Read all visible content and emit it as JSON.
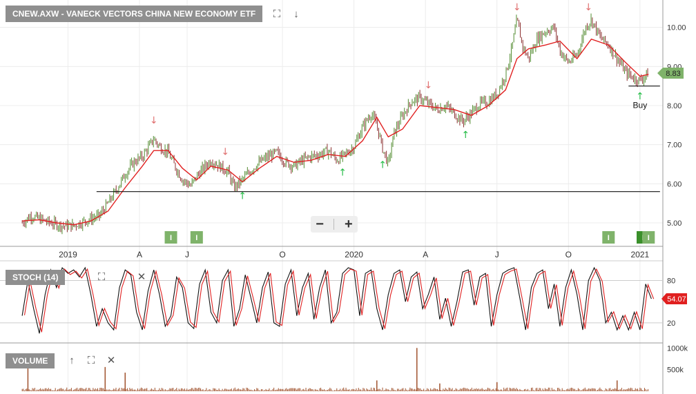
{
  "header": {
    "title": "CNEW.AXW - VANECK VECTORS CHINA NEW ECONOMY ETF"
  },
  "panels": {
    "stoch_label": "STOCH (14)",
    "volume_label": "VOLUME"
  },
  "zoom": {
    "minus": "−",
    "plus": "+"
  },
  "annotation": {
    "buy_label": "Buy"
  },
  "icons": [
    "fullscreen-icon",
    "arrow-down-icon",
    "fullscreen-icon",
    "close-icon",
    "arrow-up-icon",
    "fullscreen-icon",
    "close-icon",
    "minus-icon",
    "plus-icon",
    "dividend-icon"
  ],
  "colors": {
    "candle_up": "#4f8a2d",
    "candle_down": "#8b2f2f",
    "ma": "#e02020",
    "stoch_k": "#111111",
    "stoch_d": "#e02020",
    "volume": "#a0522d",
    "badge": "#7fb36a",
    "badge_dark": "#3a8f2a",
    "down_arrow": "#e07070",
    "up_arrow": "#22bb44"
  },
  "chart_data": {
    "type": "line",
    "price": {
      "y_ticks": [
        "10.00",
        "9.00",
        "8.00",
        "7.00",
        "6.00",
        "5.00"
      ],
      "ylim": [
        4.4,
        10.7
      ],
      "last_price": "8.83",
      "x_ticks": [
        "2019",
        "A",
        "J",
        "O",
        "2020",
        "A",
        "J",
        "O",
        "2021"
      ],
      "x_tick_dates": [
        2019.0,
        2019.25,
        2019.4167,
        2019.75,
        2020.0,
        2020.25,
        2020.5,
        2020.75,
        2021.0
      ],
      "xlim": [
        2018.83,
        2021.08
      ],
      "close": [
        [
          2018.84,
          5.0
        ],
        [
          2018.87,
          5.18
        ],
        [
          2018.9,
          5.1
        ],
        [
          2018.93,
          5.02
        ],
        [
          2018.96,
          4.96
        ],
        [
          2018.99,
          4.92
        ],
        [
          2019.02,
          4.93
        ],
        [
          2019.05,
          5.02
        ],
        [
          2019.08,
          5.1
        ],
        [
          2019.11,
          5.18
        ],
        [
          2019.14,
          5.5
        ],
        [
          2019.17,
          5.85
        ],
        [
          2019.2,
          6.25
        ],
        [
          2019.23,
          6.55
        ],
        [
          2019.26,
          6.7
        ],
        [
          2019.28,
          6.92
        ],
        [
          2019.3,
          7.15
        ],
        [
          2019.32,
          6.95
        ],
        [
          2019.35,
          6.8
        ],
        [
          2019.37,
          6.5
        ],
        [
          2019.4,
          6.1
        ],
        [
          2019.43,
          5.95
        ],
        [
          2019.45,
          6.2
        ],
        [
          2019.48,
          6.45
        ],
        [
          2019.5,
          6.6
        ],
        [
          2019.53,
          6.45
        ],
        [
          2019.56,
          6.3
        ],
        [
          2019.58,
          5.9
        ],
        [
          2019.61,
          6.1
        ],
        [
          2019.64,
          6.35
        ],
        [
          2019.67,
          6.55
        ],
        [
          2019.7,
          6.7
        ],
        [
          2019.73,
          6.8
        ],
        [
          2019.76,
          6.55
        ],
        [
          2019.79,
          6.45
        ],
        [
          2019.82,
          6.6
        ],
        [
          2019.85,
          6.7
        ],
        [
          2019.88,
          6.75
        ],
        [
          2019.91,
          6.85
        ],
        [
          2019.94,
          6.6
        ],
        [
          2019.97,
          6.75
        ],
        [
          2020.0,
          6.95
        ],
        [
          2020.03,
          7.45
        ],
        [
          2020.06,
          7.8
        ],
        [
          2020.08,
          7.5
        ],
        [
          2020.1,
          6.9
        ],
        [
          2020.12,
          6.5
        ],
        [
          2020.14,
          7.3
        ],
        [
          2020.17,
          7.75
        ],
        [
          2020.2,
          8.1
        ],
        [
          2020.23,
          8.2
        ],
        [
          2020.26,
          8.05
        ],
        [
          2020.29,
          7.9
        ],
        [
          2020.32,
          8.0
        ],
        [
          2020.35,
          7.8
        ],
        [
          2020.38,
          7.6
        ],
        [
          2020.41,
          7.8
        ],
        [
          2020.44,
          8.05
        ],
        [
          2020.47,
          8.1
        ],
        [
          2020.5,
          8.3
        ],
        [
          2020.53,
          8.8
        ],
        [
          2020.55,
          9.4
        ],
        [
          2020.57,
          10.2
        ],
        [
          2020.59,
          9.5
        ],
        [
          2020.61,
          9.2
        ],
        [
          2020.64,
          9.7
        ],
        [
          2020.67,
          9.9
        ],
        [
          2020.7,
          10.0
        ],
        [
          2020.72,
          9.4
        ],
        [
          2020.75,
          9.1
        ],
        [
          2020.78,
          9.3
        ],
        [
          2020.81,
          10.0
        ],
        [
          2020.83,
          10.2
        ],
        [
          2020.86,
          9.75
        ],
        [
          2020.89,
          9.55
        ],
        [
          2020.92,
          9.2
        ],
        [
          2020.95,
          8.85
        ],
        [
          2020.98,
          8.7
        ],
        [
          2021.0,
          8.65
        ],
        [
          2021.03,
          8.83
        ]
      ],
      "ma": [
        [
          2018.84,
          5.05
        ],
        [
          2018.9,
          5.08
        ],
        [
          2018.96,
          5.0
        ],
        [
          2019.02,
          4.95
        ],
        [
          2019.08,
          5.05
        ],
        [
          2019.14,
          5.3
        ],
        [
          2019.2,
          5.9
        ],
        [
          2019.26,
          6.45
        ],
        [
          2019.3,
          6.85
        ],
        [
          2019.35,
          6.85
        ],
        [
          2019.4,
          6.4
        ],
        [
          2019.45,
          6.1
        ],
        [
          2019.5,
          6.45
        ],
        [
          2019.56,
          6.35
        ],
        [
          2019.61,
          6.05
        ],
        [
          2019.67,
          6.4
        ],
        [
          2019.73,
          6.7
        ],
        [
          2019.79,
          6.55
        ],
        [
          2019.85,
          6.6
        ],
        [
          2019.91,
          6.75
        ],
        [
          2019.97,
          6.7
        ],
        [
          2020.03,
          7.1
        ],
        [
          2020.08,
          7.7
        ],
        [
          2020.12,
          7.2
        ],
        [
          2020.17,
          7.4
        ],
        [
          2020.23,
          8.0
        ],
        [
          2020.29,
          7.95
        ],
        [
          2020.35,
          7.9
        ],
        [
          2020.41,
          7.75
        ],
        [
          2020.47,
          8.0
        ],
        [
          2020.53,
          8.4
        ],
        [
          2020.57,
          9.2
        ],
        [
          2020.61,
          9.45
        ],
        [
          2020.67,
          9.55
        ],
        [
          2020.72,
          9.65
        ],
        [
          2020.78,
          9.2
        ],
        [
          2020.83,
          9.7
        ],
        [
          2020.89,
          9.55
        ],
        [
          2020.95,
          9.1
        ],
        [
          2021.0,
          8.75
        ],
        [
          2021.03,
          8.8
        ]
      ],
      "support_lines": [
        [
          2019.1,
          2021.07,
          5.8
        ],
        [
          2020.96,
          2021.07,
          8.5
        ]
      ],
      "sell_markers": [
        2019.3,
        2019.55,
        2020.26,
        2020.57,
        2020.82
      ],
      "buy_markers": [
        2019.61,
        2019.96,
        2020.1,
        2020.39,
        2021.0
      ],
      "dividend_badges": [
        2019.36,
        2019.45,
        2020.89,
        2021.01,
        2021.03
      ]
    },
    "stochastic": {
      "name": "STOCH (14)",
      "y_ticks": [
        "80",
        "20"
      ],
      "ylim": [
        0,
        100
      ],
      "current": "54.07",
      "k": [
        [
          2018.84,
          30
        ],
        [
          2018.86,
          80
        ],
        [
          2018.88,
          40
        ],
        [
          2018.9,
          5
        ],
        [
          2018.92,
          60
        ],
        [
          2018.94,
          95
        ],
        [
          2018.96,
          70
        ],
        [
          2018.98,
          98
        ],
        [
          2019.0,
          90
        ],
        [
          2019.02,
          95
        ],
        [
          2019.04,
          85
        ],
        [
          2019.06,
          98
        ],
        [
          2019.08,
          60
        ],
        [
          2019.1,
          15
        ],
        [
          2019.12,
          40
        ],
        [
          2019.14,
          20
        ],
        [
          2019.16,
          10
        ],
        [
          2019.18,
          70
        ],
        [
          2019.2,
          95
        ],
        [
          2019.22,
          88
        ],
        [
          2019.24,
          35
        ],
        [
          2019.26,
          10
        ],
        [
          2019.28,
          65
        ],
        [
          2019.3,
          95
        ],
        [
          2019.32,
          60
        ],
        [
          2019.34,
          15
        ],
        [
          2019.36,
          30
        ],
        [
          2019.38,
          85
        ],
        [
          2019.4,
          70
        ],
        [
          2019.42,
          20
        ],
        [
          2019.44,
          12
        ],
        [
          2019.46,
          75
        ],
        [
          2019.48,
          95
        ],
        [
          2019.5,
          35
        ],
        [
          2019.52,
          20
        ],
        [
          2019.54,
          80
        ],
        [
          2019.56,
          95
        ],
        [
          2019.58,
          15
        ],
        [
          2019.6,
          40
        ],
        [
          2019.62,
          88
        ],
        [
          2019.64,
          55
        ],
        [
          2019.66,
          20
        ],
        [
          2019.68,
          70
        ],
        [
          2019.7,
          92
        ],
        [
          2019.72,
          20
        ],
        [
          2019.74,
          15
        ],
        [
          2019.76,
          75
        ],
        [
          2019.78,
          95
        ],
        [
          2019.8,
          30
        ],
        [
          2019.82,
          70
        ],
        [
          2019.84,
          90
        ],
        [
          2019.86,
          25
        ],
        [
          2019.88,
          70
        ],
        [
          2019.9,
          95
        ],
        [
          2019.92,
          20
        ],
        [
          2019.94,
          35
        ],
        [
          2019.96,
          90
        ],
        [
          2019.98,
          98
        ],
        [
          2020.0,
          95
        ],
        [
          2020.02,
          30
        ],
        [
          2020.04,
          90
        ],
        [
          2020.06,
          95
        ],
        [
          2020.08,
          40
        ],
        [
          2020.1,
          10
        ],
        [
          2020.12,
          60
        ],
        [
          2020.14,
          90
        ],
        [
          2020.16,
          95
        ],
        [
          2020.18,
          50
        ],
        [
          2020.2,
          85
        ],
        [
          2020.22,
          92
        ],
        [
          2020.24,
          40
        ],
        [
          2020.26,
          60
        ],
        [
          2020.28,
          85
        ],
        [
          2020.3,
          25
        ],
        [
          2020.32,
          55
        ],
        [
          2020.34,
          15
        ],
        [
          2020.36,
          50
        ],
        [
          2020.38,
          92
        ],
        [
          2020.4,
          95
        ],
        [
          2020.42,
          45
        ],
        [
          2020.44,
          85
        ],
        [
          2020.46,
          90
        ],
        [
          2020.48,
          15
        ],
        [
          2020.5,
          60
        ],
        [
          2020.52,
          90
        ],
        [
          2020.54,
          95
        ],
        [
          2020.56,
          98
        ],
        [
          2020.58,
          55
        ],
        [
          2020.6,
          10
        ],
        [
          2020.62,
          70
        ],
        [
          2020.64,
          90
        ],
        [
          2020.66,
          95
        ],
        [
          2020.68,
          40
        ],
        [
          2020.7,
          75
        ],
        [
          2020.72,
          15
        ],
        [
          2020.74,
          70
        ],
        [
          2020.76,
          95
        ],
        [
          2020.78,
          60
        ],
        [
          2020.8,
          10
        ],
        [
          2020.82,
          80
        ],
        [
          2020.84,
          98
        ],
        [
          2020.86,
          80
        ],
        [
          2020.88,
          20
        ],
        [
          2020.9,
          35
        ],
        [
          2020.92,
          10
        ],
        [
          2020.94,
          30
        ],
        [
          2020.96,
          10
        ],
        [
          2020.98,
          35
        ],
        [
          2021.0,
          10
        ],
        [
          2021.02,
          75
        ],
        [
          2021.04,
          54
        ]
      ],
      "d_offset": 0.008
    },
    "volume": {
      "name": "VOLUME",
      "y_ticks": [
        "1000k",
        "500k"
      ],
      "ylim": [
        0,
        1100
      ],
      "spikes": [
        [
          2018.86,
          560
        ],
        [
          2019.13,
          560
        ],
        [
          2019.2,
          430
        ],
        [
          2020.22,
          1000
        ],
        [
          2020.08,
          250
        ],
        [
          2020.3,
          180
        ],
        [
          2020.5,
          210
        ],
        [
          2020.92,
          250
        ]
      ]
    }
  }
}
